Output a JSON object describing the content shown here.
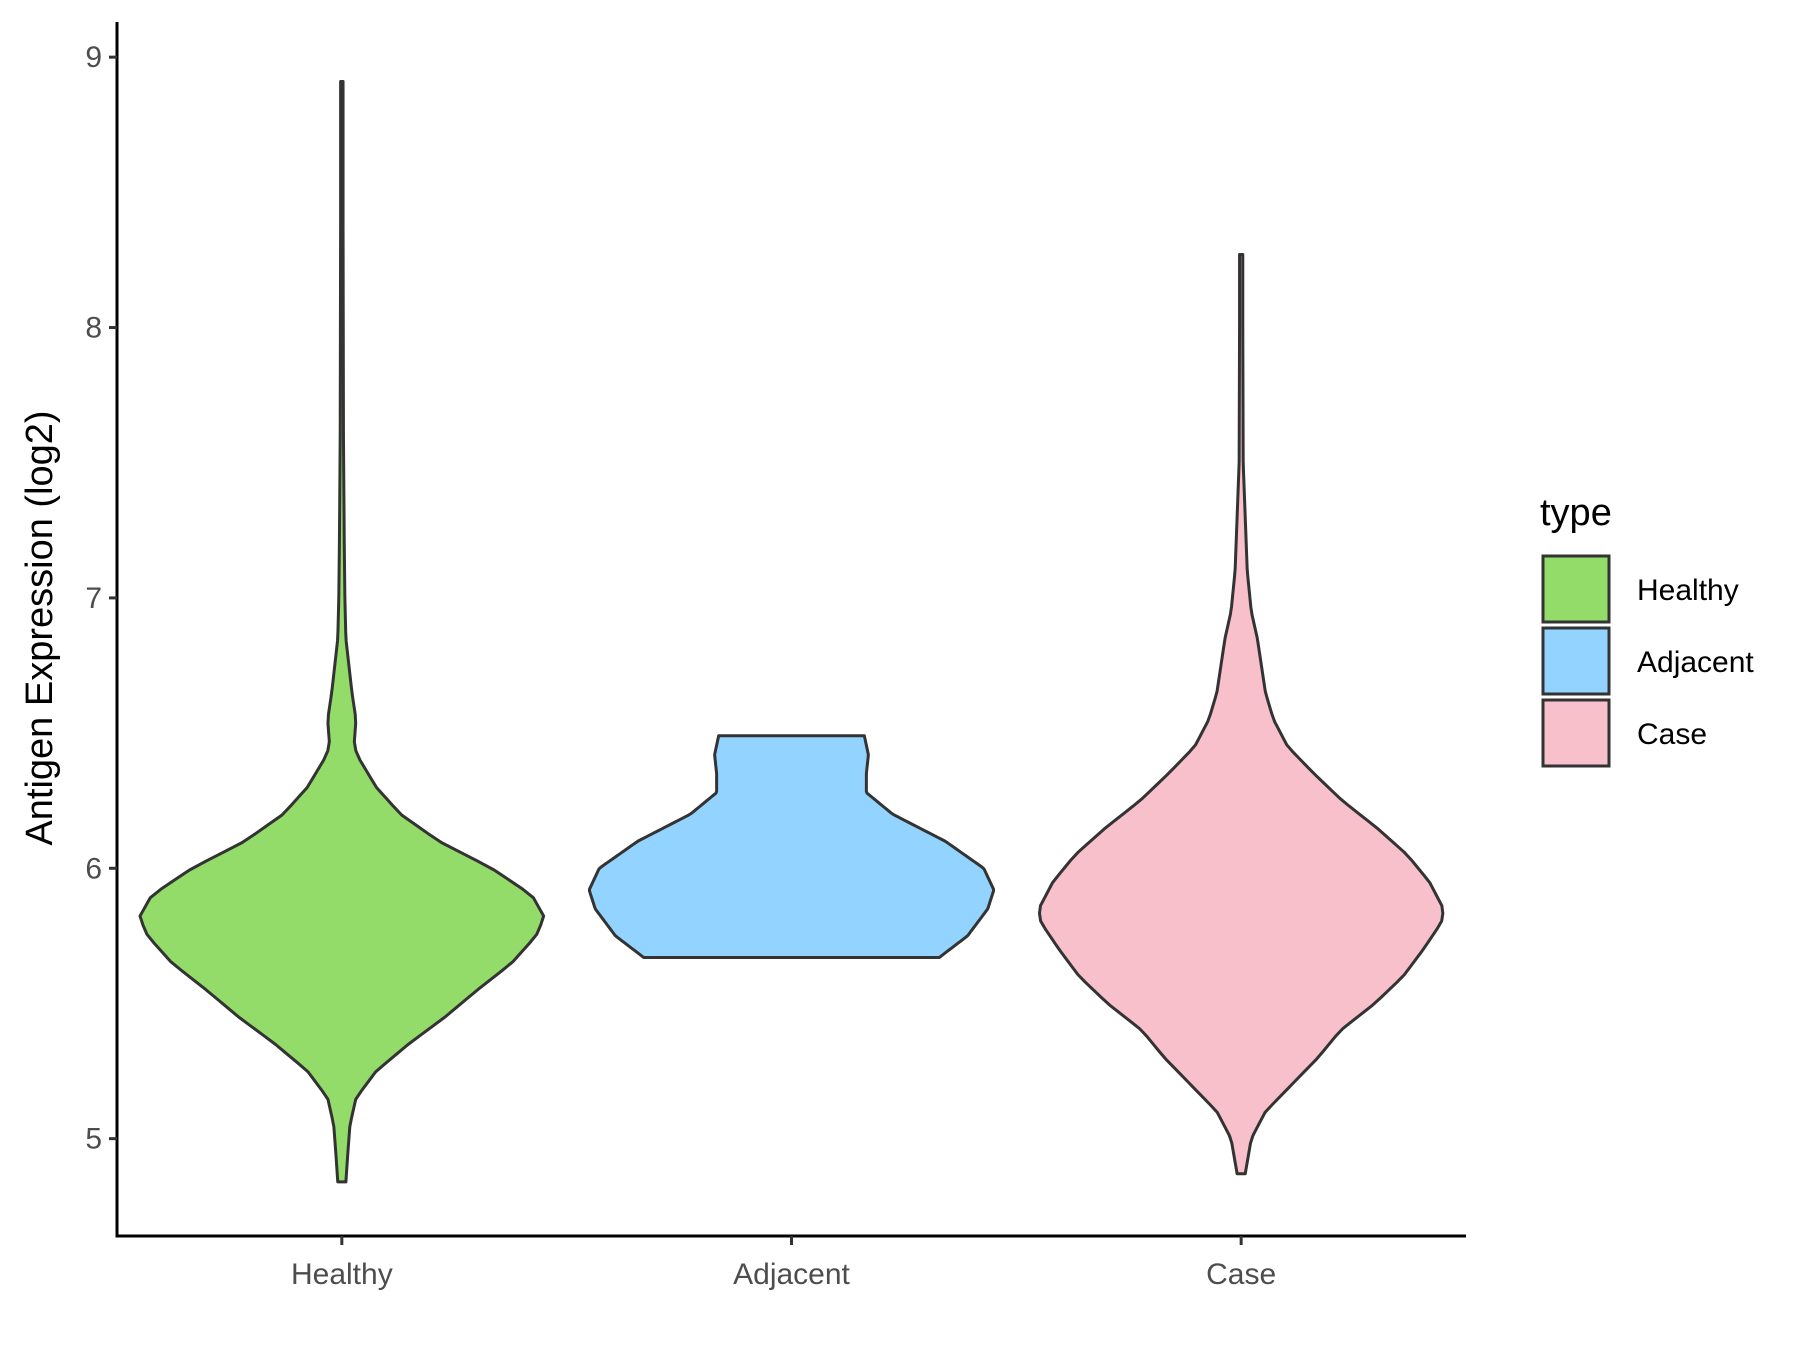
{
  "colors": {
    "outline": "#333333",
    "axis": "#000000"
  },
  "chart_data": {
    "type": "violin",
    "title": "",
    "xlabel": "",
    "ylabel": "Antigen Expression (log2)",
    "ylim": [
      4.64,
      9.13
    ],
    "yticks": [
      5,
      6,
      7,
      8,
      9
    ],
    "yticklabels": [
      "5",
      "6",
      "7",
      "8",
      "9"
    ],
    "categories": [
      "Healthy",
      "Adjacent",
      "Case"
    ],
    "grid": false,
    "legend": {
      "title": "type",
      "position": "right",
      "entries": [
        {
          "label": "Healthy",
          "color": "#93dc6a"
        },
        {
          "label": "Adjacent",
          "color": "#92d3ff"
        },
        {
          "label": "Case",
          "color": "#f7c0cb"
        }
      ]
    },
    "series": [
      {
        "category": "Healthy",
        "color": "#93dc6a",
        "min": 4.84,
        "max": 8.91,
        "density_profile": [
          [
            4.84,
            0.02
          ],
          [
            4.95,
            0.03
          ],
          [
            5.05,
            0.04
          ],
          [
            5.15,
            0.07
          ],
          [
            5.25,
            0.17
          ],
          [
            5.35,
            0.33
          ],
          [
            5.45,
            0.51
          ],
          [
            5.55,
            0.67
          ],
          [
            5.65,
            0.84
          ],
          [
            5.75,
            0.96
          ],
          [
            5.82,
            1.0
          ],
          [
            5.9,
            0.94
          ],
          [
            6.0,
            0.74
          ],
          [
            6.1,
            0.48
          ],
          [
            6.2,
            0.29
          ],
          [
            6.3,
            0.17
          ],
          [
            6.4,
            0.09
          ],
          [
            6.45,
            0.06
          ],
          [
            6.55,
            0.07
          ],
          [
            6.65,
            0.05
          ],
          [
            6.75,
            0.035
          ],
          [
            6.85,
            0.02
          ],
          [
            7.0,
            0.015
          ],
          [
            7.2,
            0.012
          ],
          [
            7.6,
            0.008
          ],
          [
            8.4,
            0.006
          ],
          [
            8.91,
            0.006
          ]
        ]
      },
      {
        "category": "Adjacent",
        "color": "#92d3ff",
        "min": 5.67,
        "max": 6.49,
        "density_profile": [
          [
            5.67,
            0.73
          ],
          [
            5.75,
            0.87
          ],
          [
            5.85,
            0.97
          ],
          [
            5.92,
            1.0
          ],
          [
            6.0,
            0.95
          ],
          [
            6.1,
            0.76
          ],
          [
            6.2,
            0.5
          ],
          [
            6.28,
            0.37
          ],
          [
            6.35,
            0.37
          ],
          [
            6.42,
            0.38
          ],
          [
            6.49,
            0.36
          ]
        ]
      },
      {
        "category": "Case",
        "color": "#f7c0cb",
        "min": 4.87,
        "max": 8.27,
        "density_profile": [
          [
            4.87,
            0.02
          ],
          [
            5.0,
            0.05
          ],
          [
            5.1,
            0.12
          ],
          [
            5.2,
            0.25
          ],
          [
            5.3,
            0.38
          ],
          [
            5.4,
            0.49
          ],
          [
            5.5,
            0.66
          ],
          [
            5.6,
            0.8
          ],
          [
            5.7,
            0.9
          ],
          [
            5.8,
            0.99
          ],
          [
            5.85,
            1.0
          ],
          [
            5.95,
            0.93
          ],
          [
            6.05,
            0.82
          ],
          [
            6.15,
            0.67
          ],
          [
            6.25,
            0.5
          ],
          [
            6.35,
            0.36
          ],
          [
            6.45,
            0.23
          ],
          [
            6.55,
            0.16
          ],
          [
            6.65,
            0.12
          ],
          [
            6.75,
            0.1
          ],
          [
            6.85,
            0.08
          ],
          [
            6.95,
            0.05
          ],
          [
            7.1,
            0.03
          ],
          [
            7.3,
            0.02
          ],
          [
            7.5,
            0.01
          ],
          [
            8.0,
            0.008
          ],
          [
            8.27,
            0.008
          ]
        ]
      }
    ]
  }
}
